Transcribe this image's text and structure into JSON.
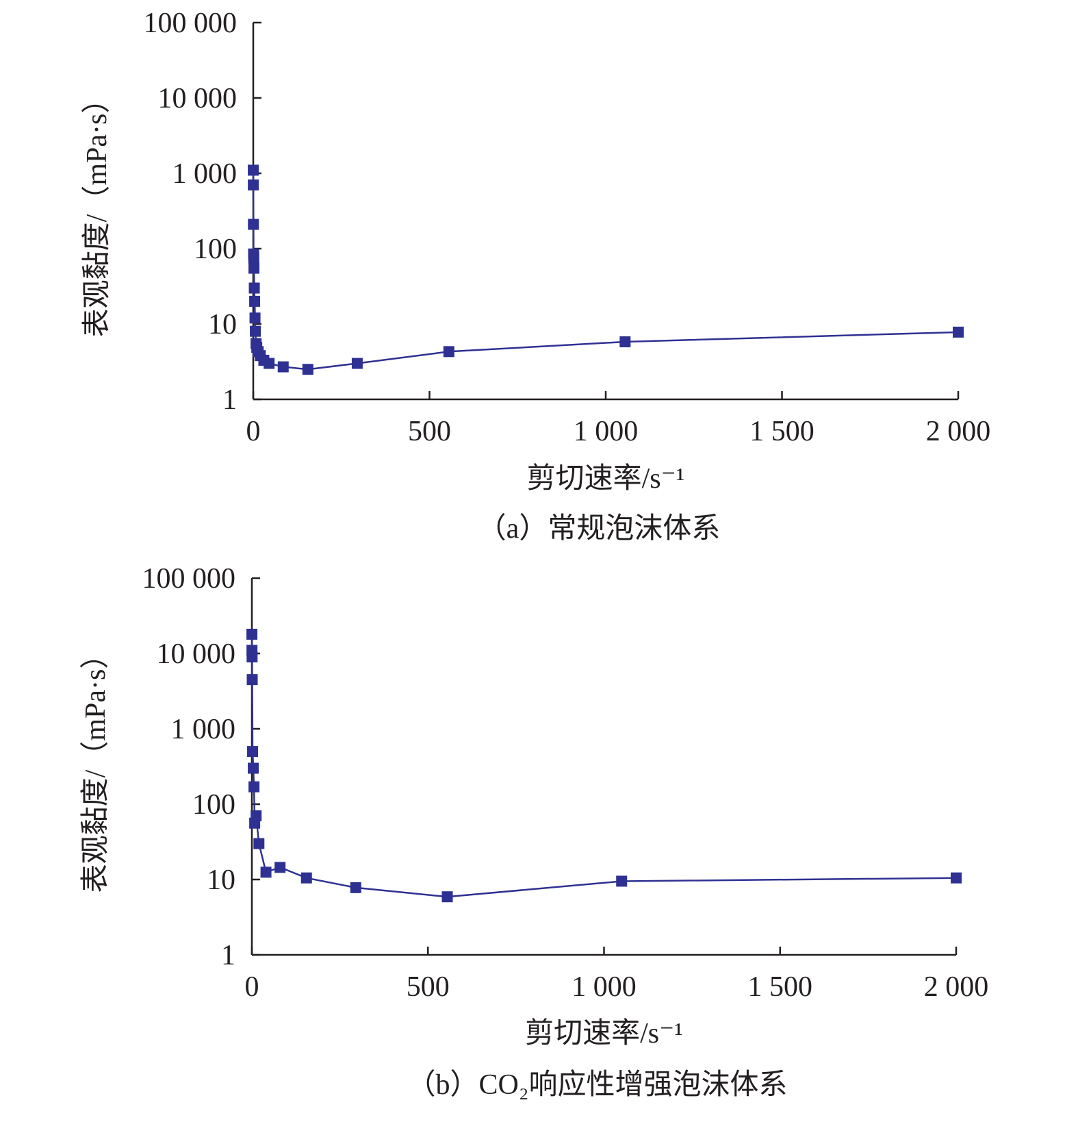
{
  "chart_data": [
    {
      "type": "line",
      "caption": "（a）常规泡沫体系",
      "xlabel": "剪切速率/s⁻¹",
      "ylabel": "表观黏度/（mPa·s）",
      "xlim": [
        0,
        2000
      ],
      "ylim": [
        1,
        100000
      ],
      "yscale": "log",
      "grid": false,
      "xticks": [
        0,
        500,
        1000,
        1500,
        2000
      ],
      "xtick_labels": [
        "0",
        "500",
        "1 000",
        "1 500",
        "2 000"
      ],
      "yticks": [
        1,
        10,
        100,
        1000,
        10000,
        100000
      ],
      "ytick_labels": [
        "1",
        "10",
        "100",
        "1 000",
        "10 000",
        "100 000"
      ],
      "color": "#2e3192",
      "marker": "square",
      "x": [
        0.1,
        0.2,
        0.5,
        1,
        1.5,
        2,
        3,
        4,
        5,
        6,
        8,
        10,
        14,
        20,
        30,
        45,
        85,
        155,
        295,
        555,
        1055,
        2000
      ],
      "y": [
        1100,
        700,
        210,
        85,
        75,
        55,
        30,
        20,
        12,
        8,
        5.5,
        4.9,
        4.3,
        3.8,
        3.3,
        3.0,
        2.7,
        2.5,
        3.0,
        4.3,
        5.8,
        7.8
      ]
    },
    {
      "type": "line",
      "caption": "（b）CO₂响应性增强泡沫体系",
      "xlabel": "剪切速率/s⁻¹",
      "ylabel": "表观黏度/（mPa·s）",
      "xlim": [
        0,
        2000
      ],
      "ylim": [
        1,
        100000
      ],
      "yscale": "log",
      "grid": false,
      "xticks": [
        0,
        500,
        1000,
        1500,
        2000
      ],
      "xtick_labels": [
        "0",
        "500",
        "1 000",
        "1 500",
        "2 000"
      ],
      "yticks": [
        1,
        10,
        100,
        1000,
        10000,
        100000
      ],
      "ytick_labels": [
        "1",
        "10",
        "100",
        "1 000",
        "10 000",
        "100 000"
      ],
      "color": "#2e3192",
      "marker": "square",
      "x": [
        0.1,
        0.3,
        0.6,
        1,
        2,
        4,
        6,
        8,
        12,
        20,
        40,
        80,
        155,
        295,
        555,
        1050,
        2000
      ],
      "y": [
        18000,
        11000,
        9000,
        4500,
        500,
        300,
        170,
        56,
        70,
        30,
        12.5,
        14.5,
        10.5,
        7.8,
        5.9,
        9.5,
        10.5
      ]
    }
  ]
}
